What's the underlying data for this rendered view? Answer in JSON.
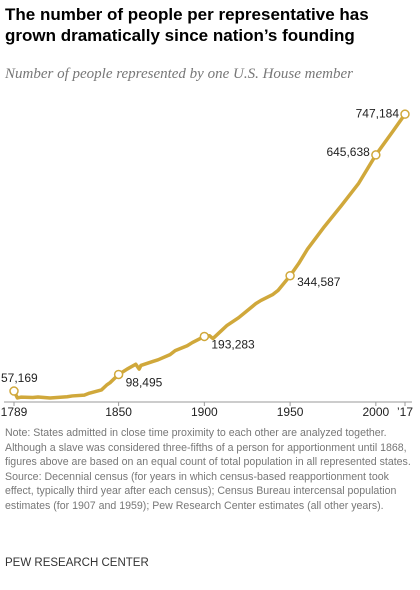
{
  "chart_data": {
    "type": "line",
    "title": "The number of people per representative has grown dramatically since nation’s founding",
    "subtitle": "Number of people represented by one U.S. House member",
    "x": [
      1789,
      1791,
      1793,
      1800,
      1803,
      1810,
      1820,
      1823,
      1830,
      1833,
      1840,
      1843,
      1845,
      1850,
      1855,
      1860,
      1862,
      1863,
      1870,
      1873,
      1880,
      1883,
      1890,
      1893,
      1900,
      1903,
      1905,
      1910,
      1913,
      1920,
      1930,
      1933,
      1940,
      1943,
      1950,
      1955,
      1960,
      1970,
      1980,
      1990,
      2000,
      2010,
      2017
    ],
    "values": [
      57169,
      40000,
      42000,
      41000,
      42500,
      40000,
      43000,
      45000,
      47000,
      52000,
      60000,
      72000,
      78000,
      98495,
      112000,
      124000,
      112000,
      121000,
      131000,
      135000,
      148000,
      158000,
      170000,
      178000,
      193283,
      195000,
      188000,
      208000,
      220000,
      240000,
      275000,
      283000,
      298000,
      308000,
      344587,
      375000,
      410000,
      467000,
      520000,
      575000,
      645638,
      705000,
      747184
    ],
    "value_labels": [
      "57,169",
      null,
      null,
      null,
      null,
      null,
      null,
      null,
      null,
      null,
      null,
      null,
      null,
      "98,495",
      null,
      null,
      null,
      null,
      null,
      null,
      null,
      null,
      null,
      null,
      "193,283",
      null,
      null,
      null,
      null,
      null,
      null,
      null,
      null,
      null,
      "344,587",
      null,
      null,
      null,
      null,
      null,
      "645,638",
      null,
      "747,184"
    ],
    "color": "#d0a83b",
    "xlim": [
      1789,
      2017
    ],
    "xticks": [
      1789,
      1850,
      1900,
      1950,
      2000,
      {
        "value": 2017,
        "label": "’17"
      }
    ],
    "ylim": [
      0,
      790000
    ],
    "notes": [
      "Note: States admitted in close time proximity to each other are analyzed together. Although a slave was considered three-fifths of a person for apportionment until 1868, figures above are based on an equal count of total population in all represented states.",
      "Source: Decennial census (for years in which census-based reapportionment took effect, typically third year after each census); Census Bureau intercensal population estimates (for 1907 and 1959); Pew Research Center estimates (all other years)."
    ],
    "credit": "PEW RESEARCH CENTER"
  }
}
